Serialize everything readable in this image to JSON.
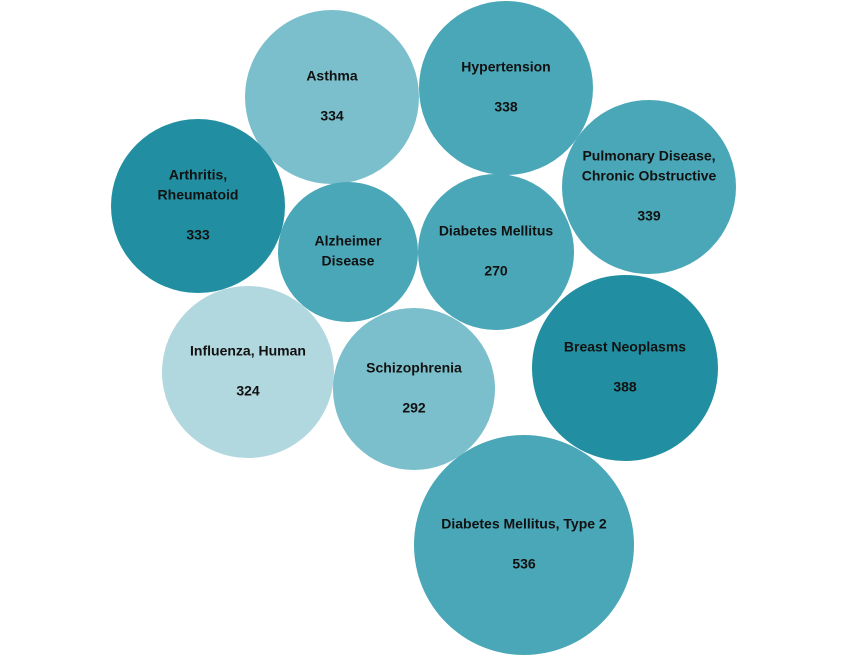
{
  "chart_data": {
    "type": "bubble",
    "title": "",
    "items": [
      {
        "label": "Asthma",
        "value": 334,
        "color": "#7abfcb"
      },
      {
        "label": "Hypertension",
        "value": 338,
        "color": "#4aa7b7"
      },
      {
        "label": "Arthritis, Rheumatoid",
        "value": 333,
        "color": "#218fa1"
      },
      {
        "label": "Pulmonary Disease, Chronic Obstructive",
        "value": 339,
        "color": "#4aa7b7"
      },
      {
        "label": "Alzheimer Disease",
        "value": null,
        "color": "#4aa7b7"
      },
      {
        "label": "Diabetes Mellitus",
        "value": 270,
        "color": "#4aa7b7"
      },
      {
        "label": "Breast Neoplasms",
        "value": 388,
        "color": "#218fa1"
      },
      {
        "label": "Influenza, Human",
        "value": 324,
        "color": "#b2d8df"
      },
      {
        "label": "Schizophrenia",
        "value": 292,
        "color": "#7abfcb"
      },
      {
        "label": "Diabetes Mellitus, Type 2",
        "value": 536,
        "color": "#4aa7b7"
      }
    ]
  }
}
